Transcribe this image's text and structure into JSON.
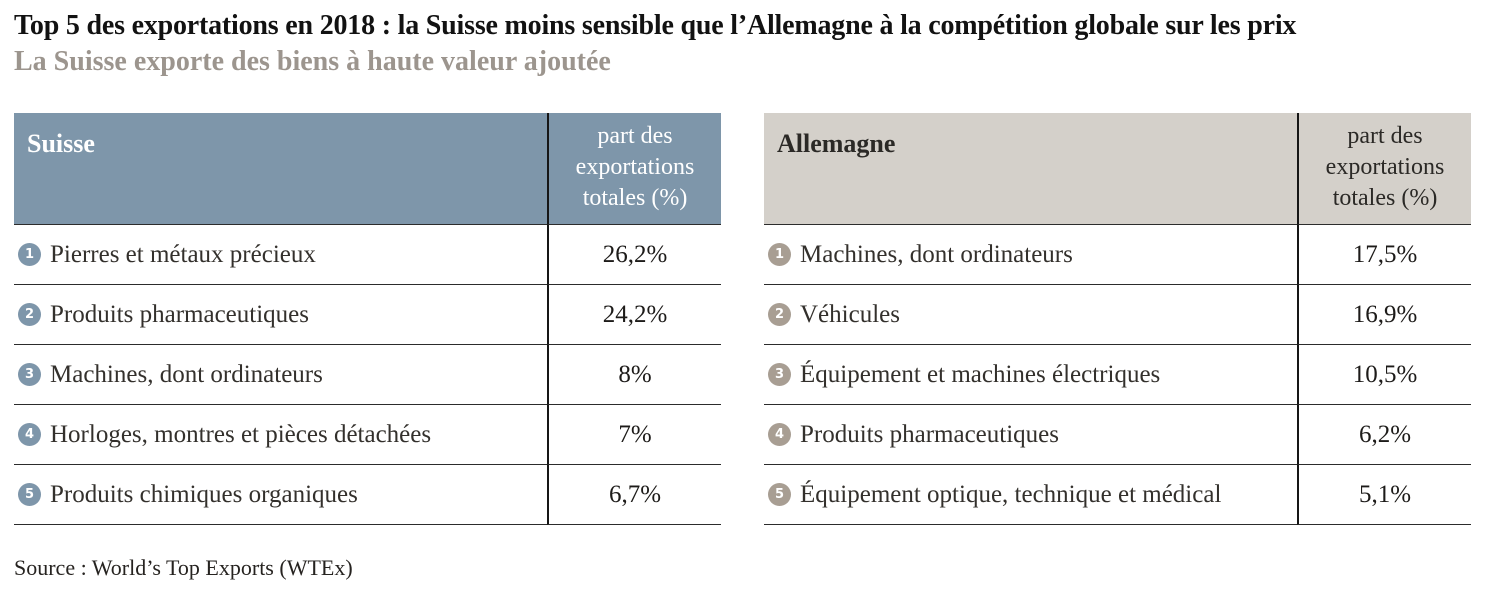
{
  "title": "Top 5 des exportations en 2018 : la Suisse moins sensible que l’Allemagne à la compétition globale sur les prix",
  "subtitle": "La Suisse exporte des biens à haute valeur ajoutée",
  "source": "Source : World’s Top Exports (WTEx)",
  "colors": {
    "suisse_accent": "#7e96aa",
    "allemagne_header_bg": "#d4d0ca",
    "allemagne_accent": "#a89e93",
    "subtitle_gray": "#9c958e",
    "divider": "#161616"
  },
  "tables": [
    {
      "country": "Suisse",
      "value_header": "part des exportations totales (%)",
      "rows": [
        {
          "rank": "1",
          "label": "Pierres et métaux précieux",
          "value": "26,2%"
        },
        {
          "rank": "2",
          "label": "Produits pharmaceutiques",
          "value": "24,2%"
        },
        {
          "rank": "3",
          "label": "Machines, dont ordinateurs",
          "value": "8%"
        },
        {
          "rank": "4",
          "label": "Horloges, montres et pièces détachées",
          "value": "7%"
        },
        {
          "rank": "5",
          "label": "Produits chimiques organiques",
          "value": "6,7%"
        }
      ]
    },
    {
      "country": "Allemagne",
      "value_header": "part des exportations totales (%)",
      "rows": [
        {
          "rank": "1",
          "label": "Machines, dont ordinateurs",
          "value": "17,5%"
        },
        {
          "rank": "2",
          "label": "Véhicules",
          "value": "16,9%"
        },
        {
          "rank": "3",
          "label": "Équipement et machines électriques",
          "value": "10,5%"
        },
        {
          "rank": "4",
          "label": "Produits pharmaceutiques",
          "value": "6,2%"
        },
        {
          "rank": "5",
          "label": "Équipement optique, technique et médical",
          "value": "5,1%"
        }
      ]
    }
  ],
  "chart_data": {
    "type": "table",
    "title": "Top 5 des exportations en 2018 : la Suisse moins sensible que l’Allemagne à la compétition globale sur les prix",
    "subtitle": "La Suisse exporte des biens à haute valeur ajoutée",
    "source": "Source : World’s Top Exports (WTEx)",
    "unit": "part des exportations totales (%)",
    "tables": [
      {
        "country": "Suisse",
        "items": [
          {
            "rank": 1,
            "category": "Pierres et métaux précieux",
            "share_pct": 26.2
          },
          {
            "rank": 2,
            "category": "Produits pharmaceutiques",
            "share_pct": 24.2
          },
          {
            "rank": 3,
            "category": "Machines, dont ordinateurs",
            "share_pct": 8
          },
          {
            "rank": 4,
            "category": "Horloges, montres et pièces détachées",
            "share_pct": 7
          },
          {
            "rank": 5,
            "category": "Produits chimiques organiques",
            "share_pct": 6.7
          }
        ]
      },
      {
        "country": "Allemagne",
        "items": [
          {
            "rank": 1,
            "category": "Machines, dont ordinateurs",
            "share_pct": 17.5
          },
          {
            "rank": 2,
            "category": "Véhicules",
            "share_pct": 16.9
          },
          {
            "rank": 3,
            "category": "Équipement et machines électriques",
            "share_pct": 10.5
          },
          {
            "rank": 4,
            "category": "Produits pharmaceutiques",
            "share_pct": 6.2
          },
          {
            "rank": 5,
            "category": "Équipement optique, technique et médical",
            "share_pct": 5.1
          }
        ]
      }
    ]
  }
}
